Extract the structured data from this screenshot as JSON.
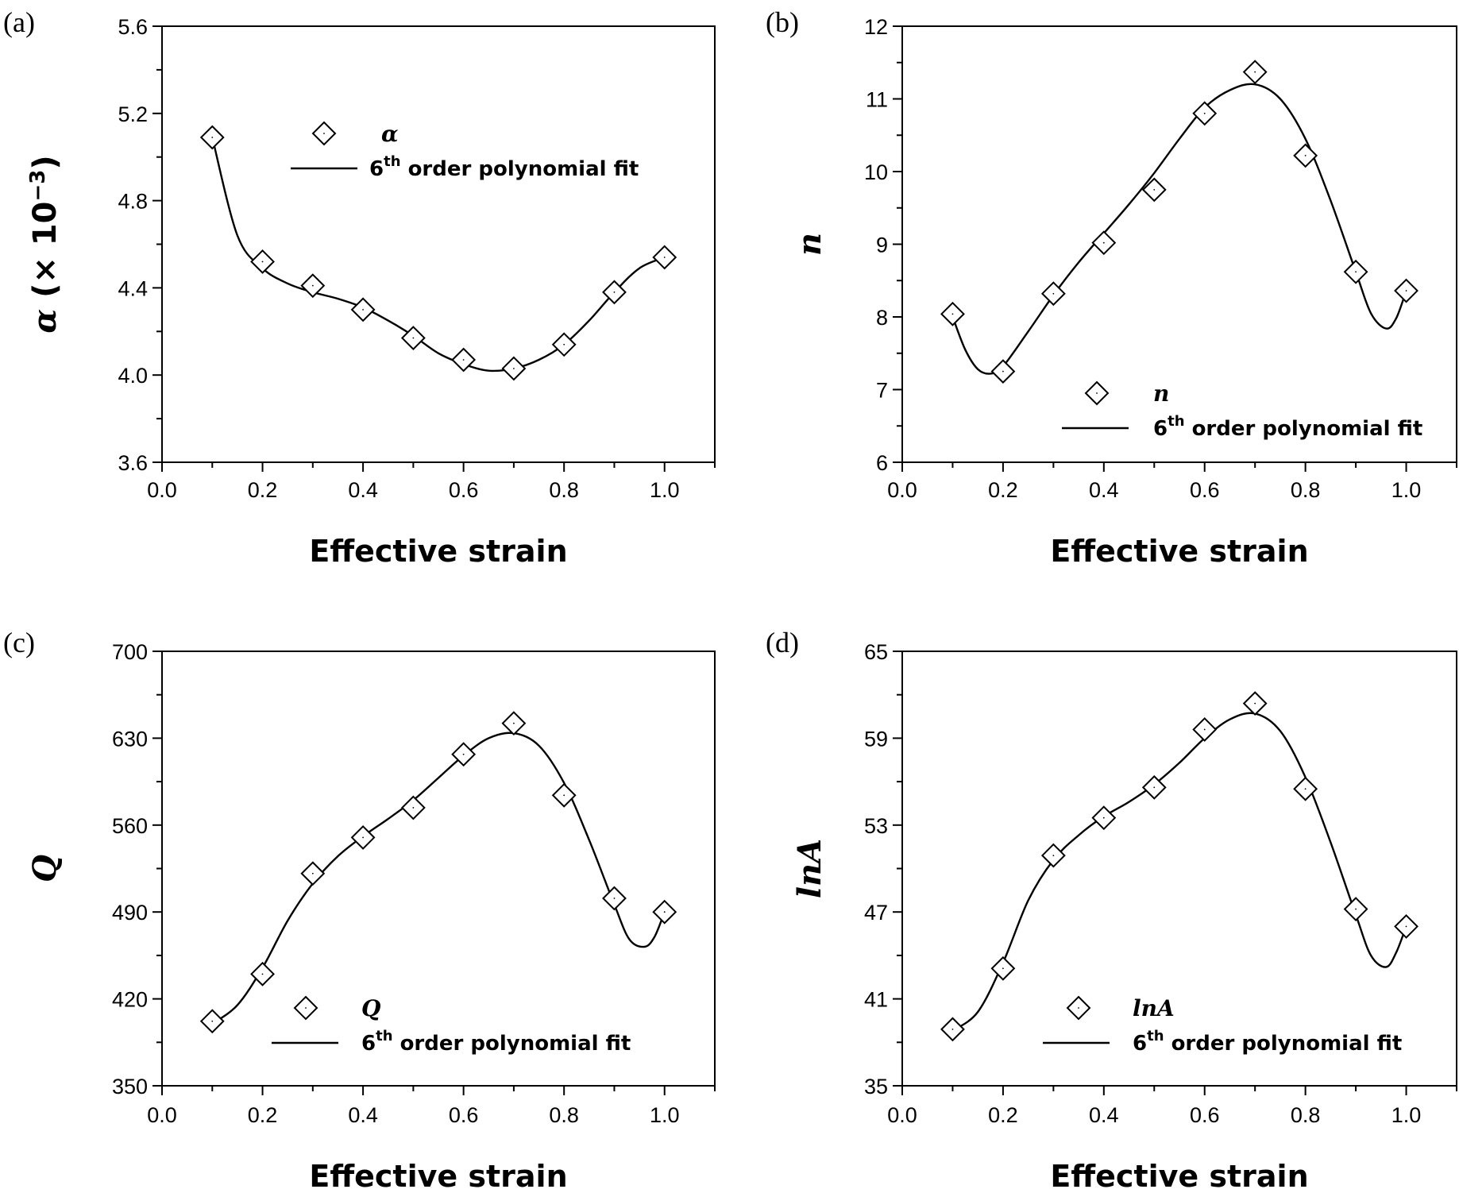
{
  "figure": {
    "x_axis_title": "Effective strain"
  },
  "chart_data": [
    {
      "type": "scatter",
      "panel": "(a)",
      "ylabel": "α (×10⁻³)",
      "ylabel_parts": {
        "symbol": "α",
        "open": " (",
        "mult": "× 10",
        "exp": "−3",
        "close": ")"
      },
      "xlim": [
        0.0,
        1.1
      ],
      "ylim": [
        3.6,
        5.6
      ],
      "x_ticks": [
        "0.0",
        "0.2",
        "0.4",
        "0.6",
        "0.8",
        "1.0"
      ],
      "y_ticks": [
        "3.6",
        "4.0",
        "4.4",
        "4.8",
        "5.2",
        "5.6"
      ],
      "x": [
        0.1,
        0.2,
        0.3,
        0.4,
        0.5,
        0.6,
        0.7,
        0.8,
        0.9,
        1.0
      ],
      "values": [
        5.09,
        4.52,
        4.41,
        4.3,
        4.17,
        4.07,
        4.03,
        4.14,
        4.38,
        4.54
      ],
      "fit": [
        [
          0.1,
          5.09
        ],
        [
          0.15,
          4.64
        ],
        [
          0.2,
          4.49
        ],
        [
          0.25,
          4.42
        ],
        [
          0.3,
          4.38
        ],
        [
          0.35,
          4.35
        ],
        [
          0.4,
          4.31
        ],
        [
          0.45,
          4.25
        ],
        [
          0.5,
          4.18
        ],
        [
          0.55,
          4.1
        ],
        [
          0.6,
          4.05
        ],
        [
          0.65,
          4.02
        ],
        [
          0.7,
          4.03
        ],
        [
          0.75,
          4.07
        ],
        [
          0.8,
          4.14
        ],
        [
          0.85,
          4.25
        ],
        [
          0.9,
          4.38
        ],
        [
          0.95,
          4.49
        ],
        [
          1.0,
          4.54
        ]
      ],
      "legend": {
        "marker_label": "α",
        "fit_label_pre": "6",
        "fit_label_sup": "th",
        "fit_label_post": " order polynomial fit",
        "position": "upper-center"
      }
    },
    {
      "type": "scatter",
      "panel": "(b)",
      "ylabel": "n",
      "xlim": [
        0.0,
        1.1
      ],
      "ylim": [
        6,
        12
      ],
      "x_ticks": [
        "0.0",
        "0.2",
        "0.4",
        "0.6",
        "0.8",
        "1.0"
      ],
      "y_ticks": [
        "6",
        "7",
        "8",
        "9",
        "10",
        "11",
        "12"
      ],
      "x": [
        0.1,
        0.2,
        0.3,
        0.4,
        0.5,
        0.6,
        0.7,
        0.8,
        0.9,
        1.0
      ],
      "values": [
        8.04,
        7.25,
        8.32,
        9.02,
        9.75,
        10.8,
        11.37,
        10.22,
        8.62,
        8.36
      ],
      "fit": [
        [
          0.1,
          8.0
        ],
        [
          0.125,
          7.55
        ],
        [
          0.15,
          7.28
        ],
        [
          0.175,
          7.22
        ],
        [
          0.2,
          7.32
        ],
        [
          0.25,
          7.8
        ],
        [
          0.3,
          8.3
        ],
        [
          0.35,
          8.75
        ],
        [
          0.4,
          9.15
        ],
        [
          0.45,
          9.55
        ],
        [
          0.5,
          9.98
        ],
        [
          0.55,
          10.45
        ],
        [
          0.6,
          10.88
        ],
        [
          0.65,
          11.12
        ],
        [
          0.7,
          11.2
        ],
        [
          0.75,
          11.0
        ],
        [
          0.8,
          10.45
        ],
        [
          0.85,
          9.6
        ],
        [
          0.9,
          8.62
        ],
        [
          0.93,
          8.05
        ],
        [
          0.96,
          7.84
        ],
        [
          0.98,
          7.98
        ],
        [
          1.0,
          8.36
        ]
      ],
      "legend": {
        "marker_label": "n",
        "fit_label_pre": "6",
        "fit_label_sup": "th",
        "fit_label_post": " order polynomial fit",
        "position": "lower-right"
      }
    },
    {
      "type": "scatter",
      "panel": "(c)",
      "ylabel": "Q",
      "xlim": [
        0.0,
        1.1
      ],
      "ylim": [
        350,
        700
      ],
      "x_ticks": [
        "0.0",
        "0.2",
        "0.4",
        "0.6",
        "0.8",
        "1.0"
      ],
      "y_ticks": [
        "350",
        "420",
        "490",
        "560",
        "630",
        "700"
      ],
      "x": [
        0.1,
        0.2,
        0.3,
        0.4,
        0.5,
        0.6,
        0.7,
        0.8,
        0.9,
        1.0
      ],
      "values": [
        402,
        440,
        521,
        550,
        574,
        617,
        642,
        584,
        501,
        490
      ],
      "fit": [
        [
          0.1,
          400
        ],
        [
          0.15,
          415
        ],
        [
          0.2,
          445
        ],
        [
          0.25,
          483
        ],
        [
          0.3,
          513
        ],
        [
          0.35,
          535
        ],
        [
          0.4,
          551
        ],
        [
          0.45,
          565
        ],
        [
          0.5,
          580
        ],
        [
          0.55,
          598
        ],
        [
          0.6,
          616
        ],
        [
          0.65,
          630
        ],
        [
          0.7,
          634
        ],
        [
          0.75,
          624
        ],
        [
          0.8,
          594
        ],
        [
          0.85,
          548
        ],
        [
          0.9,
          496
        ],
        [
          0.93,
          468
        ],
        [
          0.96,
          462
        ],
        [
          0.98,
          470
        ],
        [
          1.0,
          490
        ]
      ],
      "legend": {
        "marker_label": "Q",
        "fit_label_pre": "6",
        "fit_label_sup": "th",
        "fit_label_post": " order polynomial fit",
        "position": "lower-center"
      }
    },
    {
      "type": "scatter",
      "panel": "(d)",
      "ylabel": "lnA",
      "xlim": [
        0.0,
        1.1
      ],
      "ylim": [
        35,
        65
      ],
      "x_ticks": [
        "0.0",
        "0.2",
        "0.4",
        "0.6",
        "0.8",
        "1.0"
      ],
      "y_ticks": [
        "35",
        "41",
        "47",
        "53",
        "59",
        "65"
      ],
      "x": [
        0.1,
        0.2,
        0.3,
        0.4,
        0.5,
        0.6,
        0.7,
        0.8,
        0.9,
        1.0
      ],
      "values": [
        38.9,
        43.1,
        50.9,
        53.5,
        55.6,
        59.6,
        61.4,
        55.5,
        47.2,
        46.0
      ],
      "fit": [
        [
          0.1,
          38.8
        ],
        [
          0.15,
          40.1
        ],
        [
          0.2,
          43.5
        ],
        [
          0.25,
          47.8
        ],
        [
          0.3,
          50.6
        ],
        [
          0.35,
          52.3
        ],
        [
          0.4,
          53.6
        ],
        [
          0.45,
          54.6
        ],
        [
          0.5,
          55.8
        ],
        [
          0.55,
          57.3
        ],
        [
          0.6,
          59.0
        ],
        [
          0.65,
          60.3
        ],
        [
          0.7,
          60.7
        ],
        [
          0.75,
          59.5
        ],
        [
          0.8,
          56.3
        ],
        [
          0.85,
          51.8
        ],
        [
          0.9,
          46.8
        ],
        [
          0.93,
          44.0
        ],
        [
          0.96,
          43.2
        ],
        [
          0.98,
          44.2
        ],
        [
          1.0,
          46.0
        ]
      ],
      "legend": {
        "marker_label": "lnA",
        "fit_label_pre": "6",
        "fit_label_sup": "th",
        "fit_label_post": " order polynomial fit",
        "position": "lower-right"
      }
    }
  ]
}
